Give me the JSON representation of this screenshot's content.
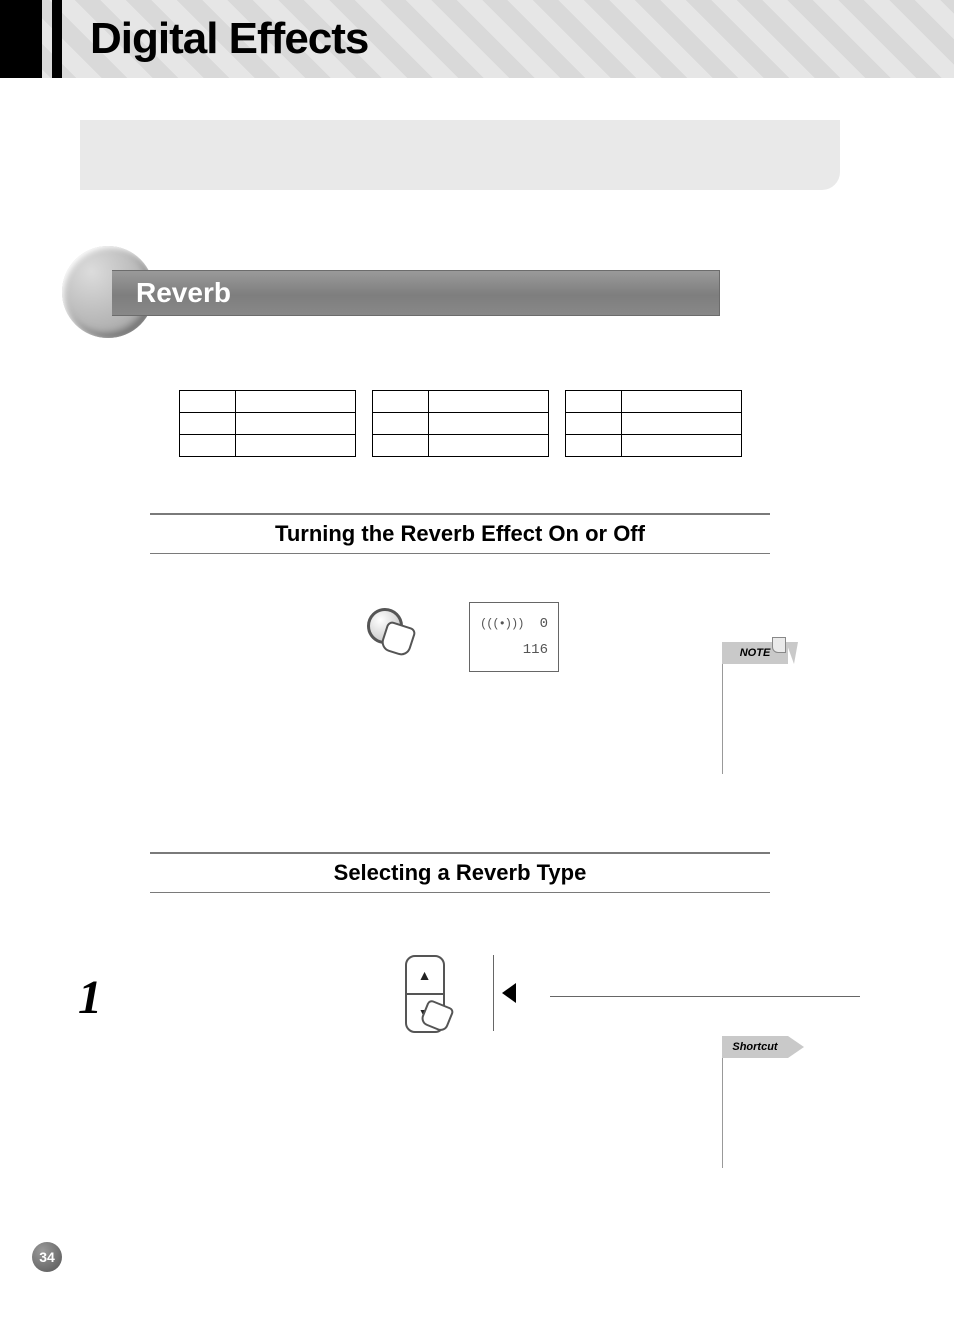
{
  "page": {
    "title": "Digital Effects",
    "number": "34"
  },
  "section": {
    "label": "Reverb"
  },
  "subsections": {
    "onoff": "Turning the Reverb Effect On or Off",
    "select": "Selecting a Reverb Type"
  },
  "lcd": {
    "line1_glyph": "(((•)))",
    "line1_value": "0",
    "line2_value": "116"
  },
  "step": {
    "n1": "1"
  },
  "margin": {
    "note": "NOTE",
    "shortcut": "Shortcut"
  },
  "colors": {
    "header_stripe_a": "#d9d9d9",
    "header_stripe_b": "#e6e6e6",
    "intro_box": "#e9e9e9",
    "pill_grad_top": "#9a9a9a",
    "pill_grad_bot": "#7e7e7e",
    "rule": "#7a7a7a",
    "margin_tag_bg": "#c9c9c9"
  }
}
